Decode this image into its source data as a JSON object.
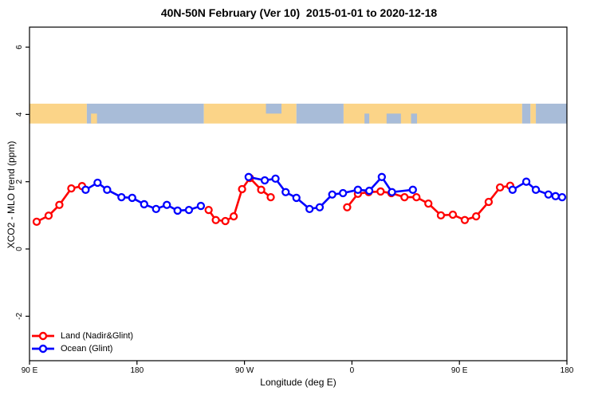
{
  "title": "40N-50N February (Ver 10)  2015-01-01 to 2020-12-18",
  "chart_data": {
    "type": "line",
    "title": "40N-50N February (Ver 10)  2015-01-01 to 2020-12-18",
    "xlabel": "Longitude (deg E)",
    "ylabel": "XCO2 - MLO trend (ppm)",
    "xlim": [
      90,
      540
    ],
    "ylim": [
      -3.3,
      6.6
    ],
    "grid": false,
    "x_ticks": [
      {
        "value": 90,
        "label": "90 E"
      },
      {
        "value": 180,
        "label": "180"
      },
      {
        "value": 270,
        "label": "90 W"
      },
      {
        "value": 360,
        "label": "0"
      },
      {
        "value": 450,
        "label": "90 E"
      },
      {
        "value": 540,
        "label": "180"
      }
    ],
    "y_ticks": [
      {
        "value": -2,
        "label": "-2"
      },
      {
        "value": 0,
        "label": "0"
      },
      {
        "value": 2,
        "label": "2"
      },
      {
        "value": 4,
        "label": "4"
      },
      {
        "value": 6,
        "label": "6"
      }
    ],
    "series": [
      {
        "name": "Land (Nadir&Glint)",
        "color": "#FF0000",
        "marker": "open-circle",
        "segments": [
          [
            [
              96,
              0.81
            ],
            [
              106,
              0.99
            ],
            [
              115,
              1.31
            ],
            [
              125,
              1.8
            ],
            [
              134,
              1.87
            ]
          ],
          [
            [
              240,
              1.16
            ],
            [
              246,
              0.86
            ],
            [
              254,
              0.83
            ],
            [
              261,
              0.97
            ],
            [
              268,
              1.78
            ],
            [
              274.5,
              2.11
            ],
            [
              284,
              1.76
            ],
            [
              292,
              1.54
            ]
          ],
          [
            [
              356,
              1.24
            ],
            [
              365,
              1.64
            ],
            [
              374,
              1.69
            ],
            [
              384,
              1.71
            ],
            [
              393,
              1.66
            ],
            [
              404,
              1.54
            ],
            [
              414,
              1.54
            ],
            [
              424,
              1.35
            ],
            [
              434.5,
              1.0
            ],
            [
              444.5,
              1.02
            ],
            [
              454.5,
              0.86
            ],
            [
              464,
              0.97
            ],
            [
              474.5,
              1.4
            ],
            [
              484,
              1.83
            ],
            [
              492.5,
              1.88
            ]
          ]
        ]
      },
      {
        "name": "Ocean (Glint)",
        "color": "#0000FF",
        "marker": "open-circle",
        "segments": [
          [
            [
              137,
              1.76
            ],
            [
              147,
              1.97
            ],
            [
              155,
              1.76
            ],
            [
              167,
              1.54
            ],
            [
              176,
              1.52
            ],
            [
              186,
              1.33
            ],
            [
              196,
              1.19
            ],
            [
              205,
              1.31
            ],
            [
              214,
              1.14
            ],
            [
              223.5,
              1.16
            ],
            [
              233.5,
              1.28
            ]
          ],
          [
            [
              273.5,
              2.14
            ],
            [
              287,
              2.04
            ],
            [
              296,
              2.09
            ],
            [
              304.5,
              1.69
            ],
            [
              313.5,
              1.52
            ],
            [
              324.5,
              1.19
            ],
            [
              333,
              1.24
            ],
            [
              343.5,
              1.62
            ],
            [
              352.5,
              1.66
            ],
            [
              365,
              1.76
            ],
            [
              374.5,
              1.73
            ],
            [
              385,
              2.14
            ],
            [
              393.5,
              1.69
            ],
            [
              411,
              1.76
            ]
          ],
          [
            [
              494.5,
              1.76
            ],
            [
              506,
              2.0
            ],
            [
              514,
              1.76
            ],
            [
              524.5,
              1.62
            ],
            [
              530.5,
              1.57
            ],
            [
              536,
              1.54
            ]
          ]
        ]
      }
    ],
    "map_strip": {
      "description": "world coastline band for 40N-50N drawn across the plot near y=4",
      "y_top_ppm": 4.32,
      "y_bottom_ppm": 3.73,
      "land_color": "#FBD488",
      "ocean_color": "#A8BCD8",
      "segments": [
        {
          "from": 90,
          "to": 138,
          "type": "land",
          "band": "full"
        },
        {
          "from": 138,
          "to": 236,
          "type": "ocean",
          "band": "full"
        },
        {
          "from": 141.5,
          "to": 146.5,
          "type": "land",
          "band": "bottom"
        },
        {
          "from": 236,
          "to": 313.5,
          "type": "land",
          "band": "full"
        },
        {
          "from": 288,
          "to": 301,
          "type": "ocean",
          "band": "top"
        },
        {
          "from": 313.5,
          "to": 353,
          "type": "ocean",
          "band": "full"
        },
        {
          "from": 353,
          "to": 502.5,
          "type": "land",
          "band": "full"
        },
        {
          "from": 370.5,
          "to": 374.5,
          "type": "ocean",
          "band": "bottom"
        },
        {
          "from": 389,
          "to": 401,
          "type": "ocean",
          "band": "bottom"
        },
        {
          "from": 409.5,
          "to": 414.5,
          "type": "ocean",
          "band": "bottom"
        },
        {
          "from": 502.5,
          "to": 509.5,
          "type": "ocean",
          "band": "full"
        },
        {
          "from": 509.5,
          "to": 514,
          "type": "land",
          "band": "full"
        },
        {
          "from": 514,
          "to": 540,
          "type": "ocean",
          "band": "full"
        }
      ]
    },
    "legend": {
      "position": "bottom-left",
      "entries": [
        {
          "label": "Land (Nadir&Glint)",
          "color": "#FF0000"
        },
        {
          "label": "Ocean (Glint)",
          "color": "#0000FF"
        }
      ]
    }
  }
}
